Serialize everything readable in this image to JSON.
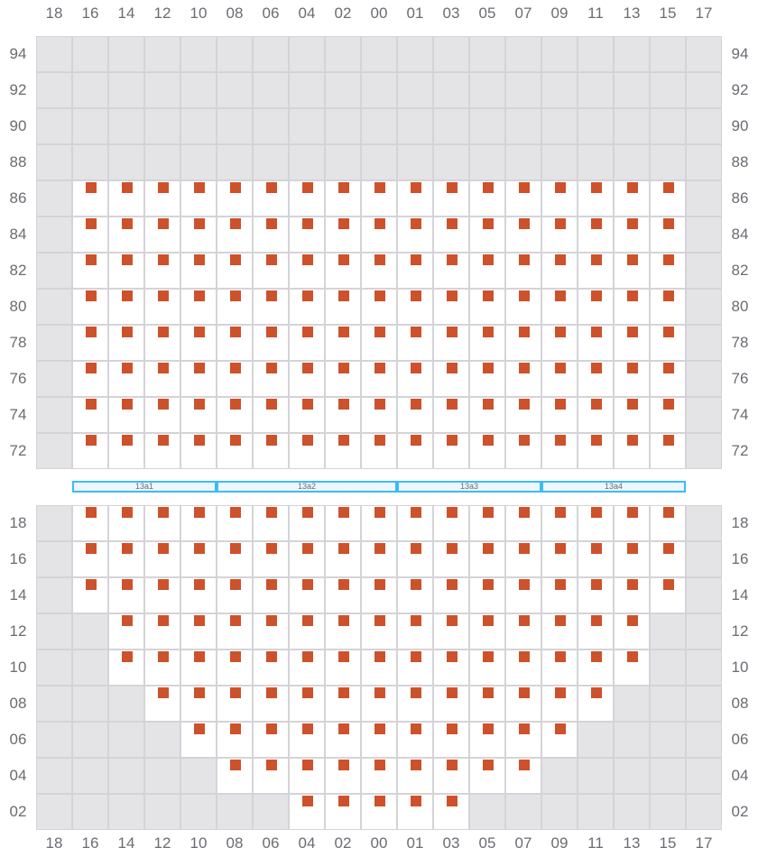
{
  "columns": [
    "18",
    "16",
    "14",
    "12",
    "10",
    "08",
    "06",
    "04",
    "02",
    "00",
    "01",
    "03",
    "05",
    "07",
    "09",
    "11",
    "13",
    "15",
    "17"
  ],
  "colors": {
    "occupied": "#cd522b",
    "available": "#ffffff",
    "unavailable": "#e4e4e7",
    "zone_border": "#38bdf8"
  },
  "top_block": {
    "rows": [
      {
        "label": "94",
        "range": null
      },
      {
        "label": "92",
        "range": null
      },
      {
        "label": "90",
        "range": null
      },
      {
        "label": "88",
        "range": null
      },
      {
        "label": "86",
        "range": [
          "16",
          "15"
        ]
      },
      {
        "label": "84",
        "range": [
          "16",
          "15"
        ]
      },
      {
        "label": "82",
        "range": [
          "16",
          "15"
        ]
      },
      {
        "label": "80",
        "range": [
          "16",
          "15"
        ]
      },
      {
        "label": "78",
        "range": [
          "16",
          "15"
        ]
      },
      {
        "label": "76",
        "range": [
          "16",
          "15"
        ]
      },
      {
        "label": "74",
        "range": [
          "16",
          "15"
        ]
      },
      {
        "label": "72",
        "range": [
          "16",
          "15"
        ]
      }
    ]
  },
  "zones": [
    {
      "label": "13a1",
      "range": [
        "16",
        "10"
      ]
    },
    {
      "label": "13a2",
      "range": [
        "08",
        "00"
      ]
    },
    {
      "label": "13a3",
      "range": [
        "01",
        "07"
      ]
    },
    {
      "label": "13a4",
      "range": [
        "09",
        "15"
      ]
    }
  ],
  "bottom_block": {
    "rows": [
      {
        "label": "18",
        "range": [
          "16",
          "15"
        ]
      },
      {
        "label": "16",
        "range": [
          "16",
          "15"
        ]
      },
      {
        "label": "14",
        "range": [
          "16",
          "15"
        ]
      },
      {
        "label": "12",
        "range": [
          "14",
          "13"
        ]
      },
      {
        "label": "10",
        "range": [
          "14",
          "13"
        ]
      },
      {
        "label": "08",
        "range": [
          "12",
          "11"
        ]
      },
      {
        "label": "06",
        "range": [
          "10",
          "09"
        ]
      },
      {
        "label": "04",
        "range": [
          "08",
          "07"
        ]
      },
      {
        "label": "02",
        "range": [
          "04",
          "03"
        ]
      }
    ]
  }
}
